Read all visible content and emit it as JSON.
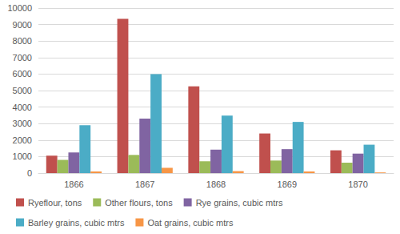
{
  "chart_data": {
    "type": "bar",
    "categories": [
      "1866",
      "1867",
      "1868",
      "1869",
      "1870"
    ],
    "series": [
      {
        "name": "Ryeflour, tons",
        "color": "#c0504d",
        "values": [
          1050,
          9350,
          5250,
          2400,
          1380
        ]
      },
      {
        "name": "Other flours, tons",
        "color": "#9bbb59",
        "values": [
          800,
          1100,
          720,
          760,
          630
        ]
      },
      {
        "name": "Rye grains, cubic mtrs",
        "color": "#8064a2",
        "values": [
          1250,
          3300,
          1420,
          1450,
          1180
        ]
      },
      {
        "name": "Barley grains, cubic mtrs",
        "color": "#4bacc6",
        "values": [
          2900,
          6000,
          3480,
          3100,
          1720
        ]
      },
      {
        "name": "Oat grains, cubic mtrs",
        "color": "#f79646",
        "values": [
          100,
          320,
          120,
          100,
          40
        ]
      }
    ],
    "ylim": [
      0,
      10000
    ],
    "yticks": [
      0,
      1000,
      2000,
      3000,
      4000,
      5000,
      6000,
      7000,
      8000,
      9000,
      10000
    ],
    "grid": true,
    "legend": "bottom"
  }
}
